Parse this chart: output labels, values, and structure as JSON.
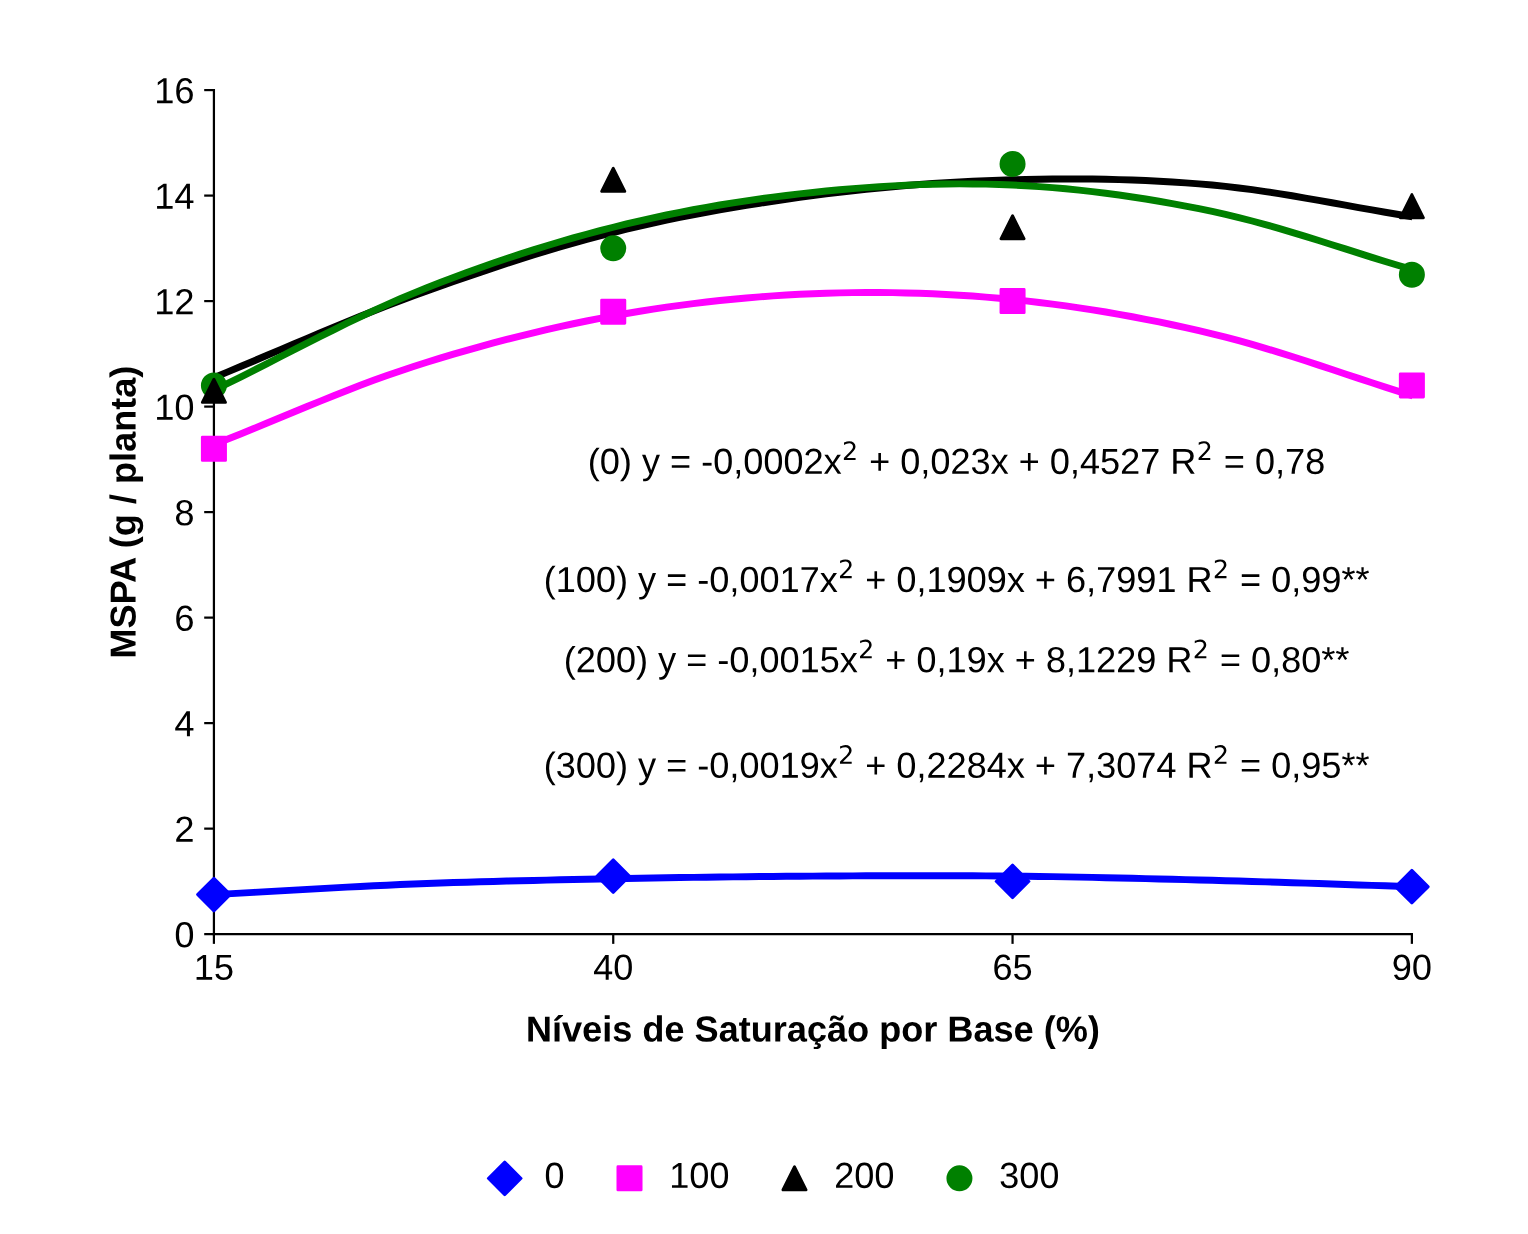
{
  "chart_data": {
    "type": "scatter",
    "xlabel": "Níveis de Saturação por Base (%)",
    "ylabel": "MSPA (g / planta)",
    "x": [
      15,
      40,
      65,
      90
    ],
    "xlim": [
      15,
      90
    ],
    "xticks": [
      15,
      40,
      65,
      90
    ],
    "ylim": [
      0,
      16
    ],
    "yticks": [
      0,
      2,
      4,
      6,
      8,
      10,
      12,
      14,
      16
    ],
    "grid": false,
    "legend": "bottom",
    "series": [
      {
        "name": "0",
        "color": "#0000ff",
        "marker": "diamond",
        "values": [
          0.75,
          1.1,
          1.0,
          0.9
        ]
      },
      {
        "name": "100",
        "color": "#ff00ff",
        "marker": "square",
        "values": [
          9.2,
          11.8,
          12.0,
          10.4
        ]
      },
      {
        "name": "200",
        "color": "#000000",
        "marker": "triangle",
        "values": [
          10.3,
          14.3,
          13.4,
          13.8
        ]
      },
      {
        "name": "300",
        "color": "#008000",
        "marker": "circle",
        "values": [
          10.4,
          13.0,
          14.6,
          12.5
        ]
      },
      {
        "type": "line",
        "color": "#0000ff",
        "x": [
          15,
          27.5,
          40,
          52.5,
          65,
          77.5,
          90
        ],
        "values": [
          0.75,
          0.95,
          1.05,
          1.1,
          1.1,
          1.02,
          0.9
        ]
      },
      {
        "type": "line",
        "color": "#ff00ff",
        "x": [
          15,
          27.5,
          40,
          52.5,
          65,
          77.5,
          90
        ],
        "values": [
          9.28,
          10.76,
          11.72,
          12.14,
          12.03,
          11.38,
          10.21
        ]
      },
      {
        "type": "line",
        "color": "#000000",
        "x": [
          15,
          27.5,
          40,
          52.5,
          65,
          77.5,
          90
        ],
        "values": [
          10.55,
          12.1,
          13.3,
          14.0,
          14.3,
          14.2,
          13.6
        ]
      },
      {
        "type": "line",
        "color": "#008000",
        "x": [
          15,
          27.5,
          40,
          52.5,
          65,
          77.5,
          90
        ],
        "values": [
          10.31,
          12.15,
          13.4,
          14.06,
          14.2,
          13.7,
          12.6
        ]
      }
    ],
    "annotations": [
      "(0) y = -0,0002x$^{2}$ + 0,023x + 0,4527 R$^{2}$ = 0,78",
      "(100) y = -0,0017x$^{2}$ + 0,1909x + 6,7991 R$^{2}$ = 0,99**",
      "(200) y = -0,0015x$^{2}$ + 0,19x + 8,1229 R$^{2}$ = 0,80**",
      "(300) y = -0,0019x$^{2}$ + 0,2284x + 7,3074 R$^{2}$ = 0,95**"
    ]
  }
}
